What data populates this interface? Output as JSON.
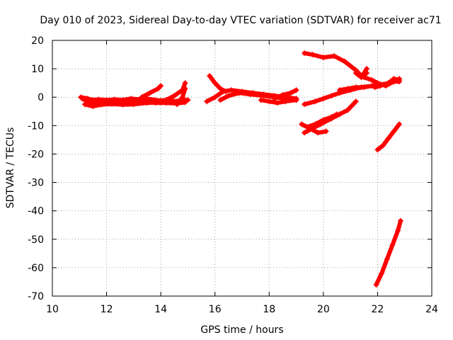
{
  "chart_data": {
    "type": "scatter",
    "title": "Day 010 of 2023, Sidereal Day-to-day VTEC variation (SDTVAR) for receiver ac71",
    "xlabel": "GPS time / hours",
    "ylabel": "SDTVAR / TECUs",
    "xlim": [
      10,
      24
    ],
    "ylim": [
      -70,
      20
    ],
    "xticks": [
      10,
      12,
      14,
      16,
      18,
      20,
      22,
      24
    ],
    "yticks": [
      -70,
      -60,
      -50,
      -40,
      -30,
      -20,
      -10,
      0,
      10,
      20
    ],
    "grid": true,
    "marker": "+",
    "color": "#ff0000",
    "tracks": [
      {
        "x": [
          11.05,
          11.3,
          11.5,
          11.7,
          12.0,
          12.3,
          12.6,
          12.9,
          13.2,
          13.5,
          13.8,
          14.0,
          14.2,
          14.5,
          14.8,
          15.0
        ],
        "y": [
          0.0,
          -0.5,
          -1.0,
          -0.8,
          -1.0,
          -0.8,
          -1.0,
          -0.5,
          -0.8,
          -0.5,
          -1.0,
          -1.2,
          -1.0,
          -1.5,
          -1.0,
          -1.0
        ]
      },
      {
        "x": [
          11.1,
          11.3,
          11.5,
          11.7,
          12.0,
          12.3,
          12.6,
          13.0,
          13.4,
          13.8,
          14.2,
          14.6,
          14.9
        ],
        "y": [
          -0.5,
          -1.5,
          -2.5,
          -1.8,
          -1.5,
          -2.0,
          -2.2,
          -1.8,
          -1.5,
          -2.0,
          -2.0,
          -2.2,
          -1.8
        ]
      },
      {
        "x": [
          11.2,
          11.5,
          11.8,
          12.2,
          12.6,
          13.0,
          13.5,
          14.0
        ],
        "y": [
          -2.5,
          -3.2,
          -2.6,
          -2.4,
          -2.6,
          -2.5,
          -2.0,
          -1.8
        ]
      },
      {
        "x": [
          13.3,
          13.6,
          13.9,
          14.0
        ],
        "y": [
          0.0,
          1.5,
          3.0,
          4.0
        ]
      },
      {
        "x": [
          14.2,
          14.5,
          14.8,
          14.9
        ],
        "y": [
          -1.0,
          0.5,
          2.5,
          5.0
        ]
      },
      {
        "x": [
          14.6,
          14.8,
          14.9
        ],
        "y": [
          -2.5,
          0.0,
          3.0
        ]
      },
      {
        "x": [
          15.8,
          16.0,
          16.2,
          16.4
        ],
        "y": [
          7.5,
          5.0,
          3.0,
          2.0
        ]
      },
      {
        "x": [
          15.7,
          16.0,
          16.3,
          16.6,
          17.0,
          17.4,
          17.8,
          18.2,
          18.6,
          19.0
        ],
        "y": [
          -1.5,
          0.0,
          2.0,
          2.5,
          2.0,
          1.5,
          1.0,
          0.5,
          0.0,
          -0.5
        ]
      },
      {
        "x": [
          16.2,
          16.5,
          16.9,
          17.3,
          17.8,
          18.2,
          18.6,
          19.0
        ],
        "y": [
          -1.0,
          0.5,
          1.5,
          1.0,
          0.5,
          0.0,
          -0.5,
          -1.0
        ]
      },
      {
        "x": [
          17.7,
          18.0,
          18.3,
          18.6,
          19.0
        ],
        "y": [
          -1.0,
          -1.5,
          -2.0,
          -1.5,
          -1.0
        ]
      },
      {
        "x": [
          18.2,
          18.5,
          18.8,
          19.0
        ],
        "y": [
          -0.5,
          0.8,
          1.5,
          2.5
        ]
      },
      {
        "x": [
          19.3,
          19.6,
          20.0,
          20.4,
          20.8,
          21.2,
          21.4,
          21.6
        ],
        "y": [
          15.5,
          15.0,
          14.0,
          14.5,
          12.5,
          9.5,
          7.5,
          8.5
        ]
      },
      {
        "x": [
          21.2,
          21.4,
          21.6
        ],
        "y": [
          8.5,
          7.0,
          10.0
        ]
      },
      {
        "x": [
          19.3,
          19.7,
          20.0,
          20.3,
          20.6,
          21.0,
          21.4,
          21.8,
          22.2,
          22.6,
          22.8
        ],
        "y": [
          -2.5,
          -1.5,
          -0.5,
          0.5,
          1.5,
          2.5,
          3.5,
          4.0,
          4.5,
          5.5,
          5.5
        ]
      },
      {
        "x": [
          20.6,
          20.9,
          21.2,
          21.5,
          21.8,
          22.1
        ],
        "y": [
          2.5,
          3.0,
          3.5,
          3.5,
          4.0,
          4.5
        ]
      },
      {
        "x": [
          21.5,
          21.8,
          22.0,
          22.3,
          22.6,
          22.8
        ],
        "y": [
          7.0,
          6.0,
          5.0,
          4.0,
          5.5,
          6.5
        ]
      },
      {
        "x": [
          21.9,
          22.1,
          22.4,
          22.6,
          22.8
        ],
        "y": [
          3.5,
          4.0,
          5.0,
          6.5,
          6.0
        ]
      },
      {
        "x": [
          19.2,
          19.5,
          19.8,
          20.1
        ],
        "y": [
          -9.5,
          -11.0,
          -12.5,
          -12.0
        ]
      },
      {
        "x": [
          19.4,
          19.7,
          20.0,
          20.3,
          20.5
        ],
        "y": [
          -10.5,
          -9.5,
          -8.0,
          -7.0,
          -6.0
        ]
      },
      {
        "x": [
          19.3,
          19.6,
          19.9,
          20.3,
          20.6,
          20.9,
          21.2
        ],
        "y": [
          -12.5,
          -11.0,
          -9.5,
          -7.5,
          -6.0,
          -4.5,
          -1.5
        ]
      },
      {
        "x": [
          22.0,
          22.2,
          22.4,
          22.6,
          22.8
        ],
        "y": [
          -18.5,
          -17.0,
          -14.5,
          -12.0,
          -9.5
        ]
      },
      {
        "x": [
          21.95,
          22.15,
          22.35,
          22.55,
          22.75,
          22.85
        ],
        "y": [
          -66.0,
          -62.0,
          -57.0,
          -52.0,
          -47.0,
          -43.5
        ]
      }
    ]
  }
}
